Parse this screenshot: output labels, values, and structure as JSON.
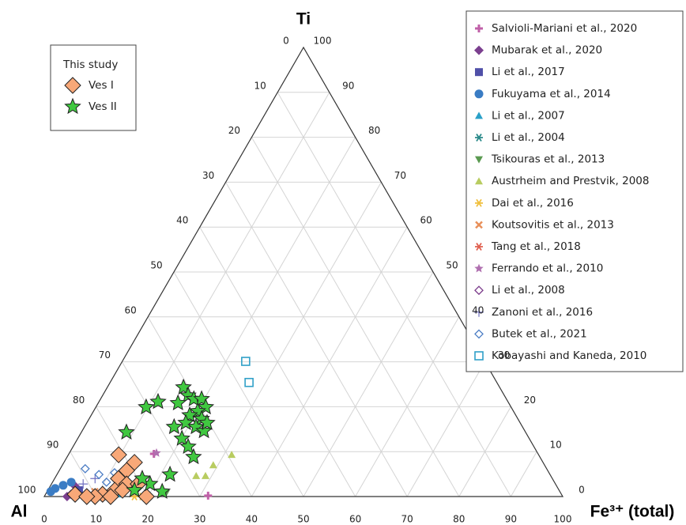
{
  "chart_data": {
    "type": "ternary",
    "vertices": {
      "top": "Ti",
      "left": "Al",
      "right": "Fe³⁺ (total)"
    },
    "al_ticks": [
      0,
      10,
      20,
      30,
      40,
      50,
      60,
      70,
      80,
      90,
      100
    ],
    "fe_ticks": [
      0,
      10,
      20,
      30,
      40,
      50,
      60,
      70,
      80,
      90,
      100
    ],
    "ti_ticks": [
      0,
      10,
      20,
      30,
      40,
      50,
      60,
      70,
      80,
      90,
      100
    ],
    "grid": true,
    "series": [
      {
        "name": "Salvioli-Mariani et al., 2020",
        "color": "#c060a8",
        "marker": "plus",
        "fe": [
          31.5,
          16.4
        ],
        "ti": [
          0.2,
          9.5
        ]
      },
      {
        "name": "Mubarak et al., 2020",
        "color": "#7b3f8f",
        "marker": "diamond",
        "fe": [
          4.4,
          4.8
        ],
        "ti": [
          0,
          2.3
        ]
      },
      {
        "name": "Li et al., 2017",
        "color": "#5050a8",
        "marker": "square",
        "fe": [
          6.0
        ],
        "ti": [
          1.4
        ]
      },
      {
        "name": "Fukuyama et al., 2014",
        "color": "#3a7cc4",
        "marker": "circle",
        "fe": [
          0.7,
          1.2,
          2.4,
          3.6
        ],
        "ti": [
          1.1,
          1.8,
          2.5,
          3.2
        ]
      },
      {
        "name": "Li et al., 2007",
        "color": "#2aa0c8",
        "marker": "triangle",
        "fe": [
          14.1
        ],
        "ti": [
          0.5
        ]
      },
      {
        "name": "Li et al., 2004",
        "color": "#2a8a8a",
        "marker": "asterisk",
        "fe": [
          11.3
        ],
        "ti": [
          0
        ]
      },
      {
        "name": "Tsikouras et al., 2013",
        "color": "#5a9a50",
        "marker": "triangle-down",
        "fe": [
          23.1
        ],
        "ti": [
          0.7
        ]
      },
      {
        "name": "Austrheim and Prestvik, 2008",
        "color": "#b8cc60",
        "marker": "triangle",
        "fe": [
          31.5,
          29.1,
          27.0,
          28.8
        ],
        "ti": [
          9.3,
          7.0,
          4.6,
          4.6
        ]
      },
      {
        "name": "Dai et al., 2016",
        "color": "#f0c040",
        "marker": "asterisk",
        "fe": [
          17.4,
          18.9
        ],
        "ti": [
          0,
          0
        ]
      },
      {
        "name": "Koutsovitis et al., 2013",
        "color": "#e8905a",
        "marker": "x",
        "fe": [
          9.2
        ],
        "ti": [
          1.1
        ]
      },
      {
        "name": "Tang et al., 2018",
        "color": "#e06050",
        "marker": "asterisk",
        "fe": [
          8.7
        ],
        "ti": [
          0.5
        ]
      },
      {
        "name": "Ferrando et al., 2010",
        "color": "#b070b0",
        "marker": "star-small",
        "fe": [
          16.8
        ],
        "ti": [
          9.7
        ]
      },
      {
        "name": "Li et al., 2008",
        "color": "#7a3a8a",
        "marker": "open-diamond",
        "fe": [
          4.9
        ],
        "ti": [
          0.5
        ]
      },
      {
        "name": "Zanoni et al., 2016",
        "color": "#7070c0",
        "marker": "thin-plus",
        "fe": [
          6.1,
          7.8
        ],
        "ti": [
          2.8,
          4.0
        ]
      },
      {
        "name": "Butek et al., 2021",
        "color": "#4a7cc4",
        "marker": "open-diamond",
        "fe": [
          4.8,
          10.4,
          8.1,
          10.9
        ],
        "ti": [
          6.2,
          3.2,
          4.9,
          5.3
        ]
      },
      {
        "name": "Kobayashi and Kaneda, 2010",
        "color": "#30a0c8",
        "marker": "open-square",
        "fe": [
          23.8,
          26.8
        ],
        "ti": [
          30.1,
          25.4
        ]
      }
    ],
    "study": {
      "title": "This study",
      "series": [
        {
          "name": "Ves I",
          "color": "#f8a878",
          "marker": "big-diamond",
          "fe": [
            9.7,
            13.6,
            13.0,
            12.3,
            12.9,
            11.0,
            5.7,
            9.8,
            12.8,
            14.5,
            19.7,
            16.7,
            14.4,
            8.2
          ],
          "ti": [
            9.3,
            7.6,
            5.8,
            4.0,
            1.4,
            0.5,
            0.5,
            0,
            0,
            2.8,
            0,
            2.8,
            1.4,
            0
          ]
        },
        {
          "name": "Ves II",
          "color": "#40c840",
          "marker": "big-star",
          "fe": [
            14.7,
            16.5,
            18.0,
            19.5,
            21.2,
            20.1,
            19.0,
            21.7,
            19.1,
            21.5,
            23.5,
            15.4,
            17.3,
            20.1,
            22.2,
            24.4,
            11.4,
            9.7,
            8.7,
            21.8,
            22.2,
            19.0,
            16.9,
            16.7,
            23.2
          ],
          "ti": [
            24.3,
            22.5,
            21.7,
            21.7,
            19.9,
            19.0,
            18.1,
            17.3,
            16.4,
            15.5,
            14.6,
            20.8,
            15.5,
            12.9,
            11.1,
            8.8,
            21.1,
            19.9,
            14.3,
            4.9,
            1.1,
            2.8,
            4.0,
            1.4,
            16.4
          ]
        }
      ]
    }
  }
}
